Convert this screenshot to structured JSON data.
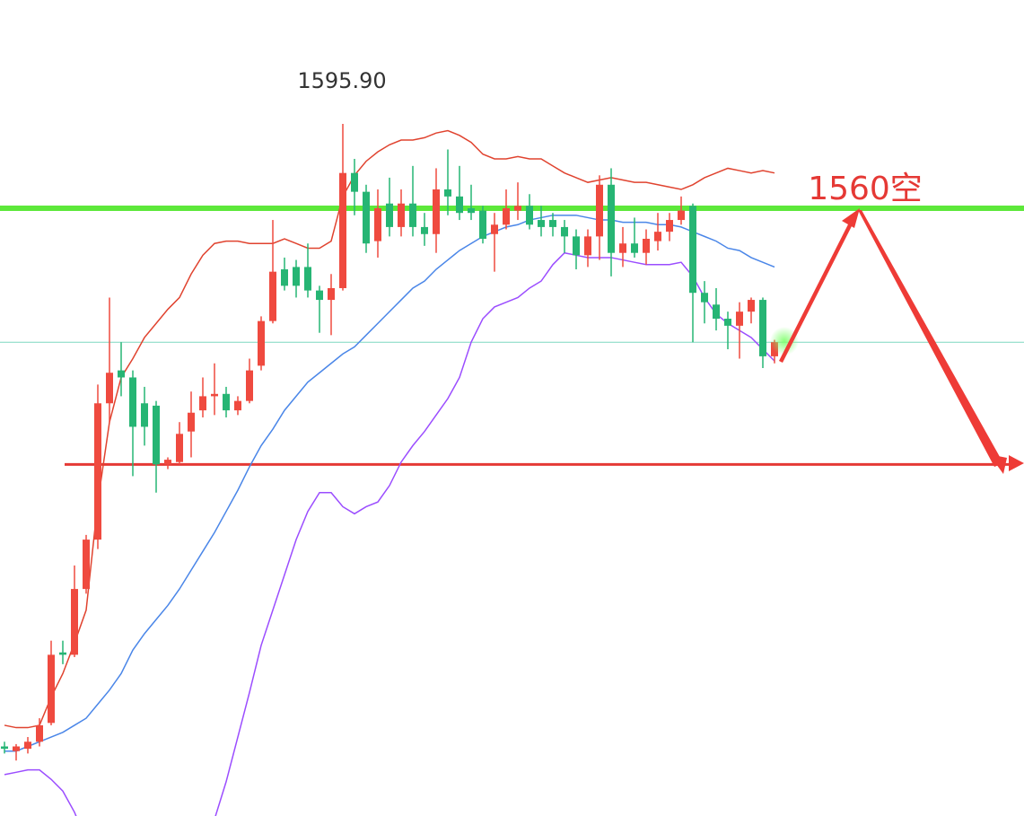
{
  "chart_data": {
    "type": "candlestick",
    "ylim": [
      1301.4,
      1648.6
    ],
    "up_color": "#ef4a3f",
    "down_color": "#26b574",
    "annotations": [
      {
        "text": "1595.90"
      },
      {
        "text": "1560空"
      }
    ],
    "hlines": [
      {
        "value": 1560,
        "color": "#5de83a"
      },
      {
        "value": 1503,
        "color": "#7fd8c0"
      },
      {
        "value": 1451,
        "color": "#e53935"
      }
    ],
    "candles": [
      [
        1331,
        1333,
        1328,
        1330
      ],
      [
        1329,
        1332,
        1325,
        1331
      ],
      [
        1330,
        1335,
        1328,
        1333
      ],
      [
        1333,
        1343,
        1331,
        1340
      ],
      [
        1341,
        1376,
        1340,
        1370
      ],
      [
        1371,
        1376,
        1366,
        1370
      ],
      [
        1370,
        1408,
        1369,
        1398
      ],
      [
        1398,
        1421,
        1396,
        1419
      ],
      [
        1419,
        1485,
        1415,
        1477
      ],
      [
        1477,
        1522,
        1469,
        1490
      ],
      [
        1491,
        1503,
        1480,
        1488
      ],
      [
        1488,
        1491,
        1446,
        1467
      ],
      [
        1477,
        1484,
        1459,
        1467
      ],
      [
        1476,
        1478,
        1439,
        1451
      ],
      [
        1451,
        1454,
        1449,
        1453
      ],
      [
        1452,
        1469,
        1451,
        1464
      ],
      [
        1465,
        1482,
        1454,
        1473
      ],
      [
        1474,
        1488,
        1471,
        1480
      ],
      [
        1480,
        1494,
        1472,
        1481
      ],
      [
        1481,
        1484,
        1471,
        1474
      ],
      [
        1474,
        1480,
        1472,
        1478
      ],
      [
        1478,
        1496,
        1477,
        1491
      ],
      [
        1493,
        1514,
        1491,
        1512
      ],
      [
        1512,
        1555,
        1511,
        1533
      ],
      [
        1534,
        1539,
        1525,
        1527
      ],
      [
        1535,
        1538,
        1522,
        1527
      ],
      [
        1535,
        1545,
        1522,
        1525
      ],
      [
        1525,
        1527,
        1507,
        1521
      ],
      [
        1521,
        1532,
        1506,
        1526
      ],
      [
        1526,
        1595.9,
        1525,
        1575
      ],
      [
        1575,
        1581,
        1557,
        1567
      ],
      [
        1567,
        1570,
        1541,
        1545
      ],
      [
        1546,
        1568,
        1539,
        1560
      ],
      [
        1562,
        1573,
        1548,
        1552
      ],
      [
        1552,
        1568,
        1548,
        1562
      ],
      [
        1562,
        1578,
        1548,
        1552
      ],
      [
        1552,
        1558,
        1544,
        1549
      ],
      [
        1549,
        1577,
        1541,
        1568
      ],
      [
        1568,
        1585,
        1557,
        1565
      ],
      [
        1565,
        1578,
        1555,
        1558
      ],
      [
        1560,
        1570,
        1555,
        1558
      ],
      [
        1559,
        1561,
        1545,
        1547
      ],
      [
        1549,
        1558,
        1533,
        1553
      ],
      [
        1553,
        1568,
        1551,
        1560
      ],
      [
        1559,
        1571,
        1555,
        1561
      ],
      [
        1561,
        1566,
        1551,
        1553
      ],
      [
        1555,
        1561,
        1548,
        1552
      ],
      [
        1555,
        1558,
        1548,
        1552
      ],
      [
        1552,
        1555,
        1541,
        1548
      ],
      [
        1548,
        1551,
        1534,
        1540
      ],
      [
        1540,
        1551,
        1535,
        1548
      ],
      [
        1548,
        1574,
        1538,
        1570
      ],
      [
        1570,
        1577,
        1531,
        1541
      ],
      [
        1541,
        1552,
        1535,
        1545
      ],
      [
        1545,
        1556,
        1539,
        1541
      ],
      [
        1541,
        1551,
        1536,
        1547
      ],
      [
        1546,
        1558,
        1542,
        1550
      ],
      [
        1550,
        1558,
        1546,
        1555
      ],
      [
        1555,
        1565,
        1553,
        1559
      ],
      [
        1561,
        1562,
        1503,
        1524
      ],
      [
        1524,
        1529,
        1511,
        1520
      ],
      [
        1519,
        1526,
        1508,
        1513
      ],
      [
        1513,
        1516,
        1500,
        1510
      ],
      [
        1510,
        1520,
        1496,
        1516
      ],
      [
        1516,
        1522,
        1511,
        1521
      ],
      [
        1521,
        1522,
        1492,
        1497
      ],
      [
        1497,
        1504,
        1494,
        1503
      ]
    ],
    "lines": [
      {
        "color": "#e0432f",
        "values": [
          1340,
          1339,
          1339,
          1340,
          1352,
          1362,
          1375,
          1389,
          1435,
          1469,
          1488,
          1496,
          1505,
          1511,
          1517,
          1522,
          1532,
          1540,
          1545,
          1546,
          1546,
          1545,
          1545,
          1545,
          1547,
          1545,
          1543,
          1543,
          1546,
          1565,
          1574,
          1580,
          1584,
          1587,
          1589,
          1589,
          1590,
          1592,
          1593,
          1591,
          1588,
          1583,
          1581,
          1581,
          1582,
          1581,
          1581,
          1578,
          1575,
          1573,
          1571,
          1572,
          1573,
          1572,
          1571,
          1571,
          1570,
          1569,
          1568,
          1570,
          1573,
          1575,
          1577,
          1576,
          1575,
          1576,
          1575
        ]
      },
      {
        "color": "#4a86e8",
        "values": [
          1329,
          1329,
          1331,
          1333,
          1335,
          1337,
          1340,
          1343,
          1349,
          1355,
          1362,
          1372,
          1379,
          1385,
          1391,
          1398,
          1406,
          1414,
          1422,
          1431,
          1440,
          1450,
          1459,
          1466,
          1474,
          1480,
          1486,
          1490,
          1494,
          1498,
          1501,
          1506,
          1511,
          1516,
          1521,
          1526,
          1529,
          1534,
          1538,
          1542,
          1545,
          1548,
          1550,
          1552,
          1553,
          1555,
          1556,
          1557,
          1557,
          1557,
          1556,
          1555,
          1555,
          1554,
          1554,
          1554,
          1553,
          1553,
          1552,
          1550,
          1548,
          1546,
          1543,
          1542,
          1539,
          1537,
          1535
        ]
      },
      {
        "color": "#9b4dff",
        "values": [
          1319,
          1320,
          1321,
          1321,
          1317,
          1312,
          1303,
          1291,
          null,
          null,
          null,
          null,
          null,
          null,
          null,
          null,
          null,
          1290,
          1300,
          1316,
          1335,
          1354,
          1374,
          1389,
          1404,
          1419,
          1431,
          1439,
          1439,
          1433,
          1430,
          1433,
          1435,
          1442,
          1452,
          1459,
          1465,
          1472,
          1479,
          1488,
          1503,
          1513,
          1518,
          1520,
          1522,
          1526,
          1529,
          1536,
          1541,
          1540,
          1539,
          1539,
          1539,
          1538,
          1537,
          1536,
          1536,
          1536,
          1537,
          1531,
          1522,
          1515,
          1511,
          1508,
          1505,
          1500,
          1495
        ]
      }
    ]
  }
}
